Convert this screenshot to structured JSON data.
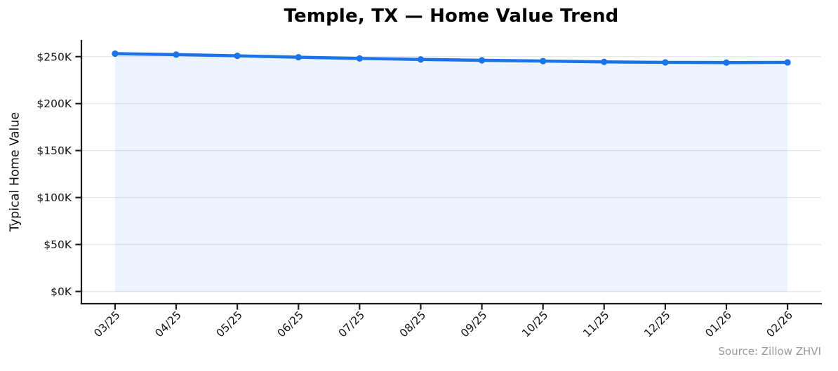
{
  "figure": {
    "title": "Temple, TX — Home Value Trend",
    "source_note": "Source: Zillow ZHVI"
  },
  "chart_data": {
    "type": "line",
    "title": "Temple, TX — Home Value Trend",
    "xlabel": "",
    "ylabel": "Typical Home Value",
    "x": [
      "03/25",
      "04/25",
      "05/25",
      "06/25",
      "07/25",
      "08/25",
      "09/25",
      "10/25",
      "11/25",
      "12/25",
      "01/26",
      "02/26"
    ],
    "series": [
      {
        "name": "Typical Home Value",
        "values": [
          253200,
          252200,
          250900,
          249400,
          248100,
          247000,
          246100,
          245300,
          244400,
          243900,
          243700,
          243900
        ]
      }
    ],
    "yticks": [
      {
        "value": 0,
        "label": "$0K"
      },
      {
        "value": 50000,
        "label": "$50K"
      },
      {
        "value": 100000,
        "label": "$100K"
      },
      {
        "value": 150000,
        "label": "$150K"
      },
      {
        "value": 200000,
        "label": "$200K"
      },
      {
        "value": 250000,
        "label": "$250K"
      }
    ],
    "ylim": [
      -13000,
      267000
    ],
    "xmargin": 0.05,
    "grid": "horizontal",
    "legend": "none",
    "marker": "circle",
    "area_fill": true,
    "annotations": [
      "Source: Zillow ZHVI"
    ],
    "colors": {
      "line": "#1a73e8",
      "area": "rgba(26,115,232,0.08)",
      "grid": "#e6e6e6",
      "axis": "#1c1c1c",
      "tick_label": "#151515",
      "title": "#000000",
      "source": "#999999"
    }
  }
}
